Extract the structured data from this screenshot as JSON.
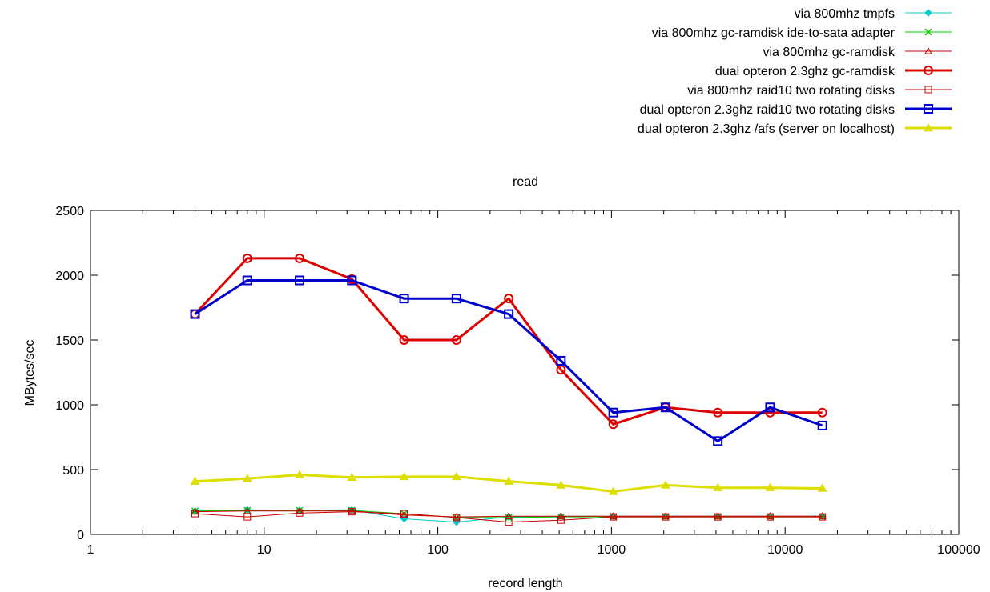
{
  "chart_data": {
    "type": "line",
    "title": "read",
    "xlabel": "record length",
    "ylabel": "MBytes/sec",
    "xscale": "log",
    "xlim": [
      1,
      100000
    ],
    "ylim": [
      0,
      2500
    ],
    "grid": false,
    "legend_position": "top-right, above plot",
    "x": [
      4,
      8,
      16,
      32,
      64,
      128,
      256,
      512,
      1024,
      2048,
      4096,
      8192,
      16384
    ],
    "xticks": [
      {
        "value": 1,
        "label": "1"
      },
      {
        "value": 10,
        "label": "10"
      },
      {
        "value": 100,
        "label": "100"
      },
      {
        "value": 1000,
        "label": "1000"
      },
      {
        "value": 10000,
        "label": "10000"
      },
      {
        "value": 100000,
        "label": "100000"
      }
    ],
    "yticks": [
      {
        "value": 0,
        "label": "0"
      },
      {
        "value": 500,
        "label": "500"
      },
      {
        "value": 1000,
        "label": "1000"
      },
      {
        "value": 1500,
        "label": "1500"
      },
      {
        "value": 2000,
        "label": "2000"
      },
      {
        "value": 2500,
        "label": "2500"
      }
    ],
    "series": [
      {
        "name": "via 800mhz tmpfs",
        "color": "#00cccc",
        "marker": "diamond-filled",
        "thick": false,
        "values": [
          180,
          190,
          185,
          190,
          120,
          95,
          135,
          140,
          140,
          140,
          140,
          140,
          140
        ]
      },
      {
        "name": "via 800mhz gc-ramdisk ide-to-sata adapter",
        "color": "#00cc00",
        "marker": "cross",
        "thick": false,
        "values": [
          180,
          185,
          185,
          185,
          160,
          130,
          130,
          135,
          135,
          135,
          135,
          135,
          135
        ]
      },
      {
        "name": "via 800mhz gc-ramdisk",
        "color": "#cc0000",
        "marker": "triangle-open",
        "thick": false,
        "values": [
          175,
          180,
          180,
          180,
          150,
          135,
          140,
          140,
          140,
          140,
          140,
          140,
          140
        ]
      },
      {
        "name": "dual opteron 2.3ghz gc-ramdisk",
        "color": "#dd0000",
        "marker": "circle-open",
        "thick": true,
        "values": [
          1700,
          2130,
          2130,
          1970,
          1500,
          1500,
          1820,
          1270,
          850,
          980,
          940,
          940,
          940
        ]
      },
      {
        "name": "via 800mhz raid10 two rotating disks",
        "color": "#cc0000",
        "marker": "square-open",
        "thick": false,
        "values": [
          160,
          135,
          165,
          175,
          160,
          130,
          95,
          110,
          135,
          135,
          135,
          135,
          135
        ]
      },
      {
        "name": "dual opteron 2.3ghz raid10 two rotating disks",
        "color": "#0000cc",
        "marker": "square-open",
        "thick": true,
        "values": [
          1700,
          1960,
          1960,
          1960,
          1820,
          1820,
          1700,
          1340,
          940,
          980,
          720,
          980,
          840
        ]
      },
      {
        "name": "dual opteron 2.3ghz /afs (server on localhost)",
        "color": "#dddd00",
        "marker": "triangle-filled",
        "thick": true,
        "values": [
          410,
          430,
          460,
          440,
          445,
          445,
          410,
          380,
          330,
          380,
          360,
          360,
          355
        ]
      }
    ]
  }
}
